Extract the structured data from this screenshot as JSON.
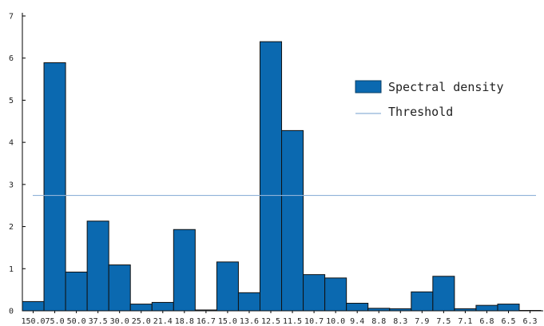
{
  "chart_data": {
    "type": "bar",
    "categories": [
      "150.0",
      "75.0",
      "50.0",
      "37.5",
      "30.0",
      "25.0",
      "21.4",
      "18.8",
      "16.7",
      "15.0",
      "13.6",
      "12.5",
      "11.5",
      "10.7",
      "10.0",
      "9.4",
      "8.8",
      "8.3",
      "7.9",
      "7.5",
      "7.1",
      "6.8",
      "6.5",
      "6.3"
    ],
    "series": [
      {
        "name": "Spectral density",
        "values": [
          0.22,
          5.89,
          0.92,
          2.13,
          1.09,
          0.16,
          0.2,
          1.93,
          0.02,
          1.16,
          0.43,
          6.39,
          4.28,
          0.86,
          0.78,
          0.18,
          0.06,
          0.05,
          0.45,
          0.82,
          0.05,
          0.13,
          0.16,
          0.0
        ],
        "color": "#0b69b0"
      }
    ],
    "threshold": {
      "name": "Threshold",
      "value": 2.74,
      "color": "#8fb2d8"
    },
    "ylim": [
      0,
      7
    ],
    "yticks": [
      "0",
      "1",
      "2",
      "3",
      "4",
      "5",
      "6",
      "7"
    ],
    "grid": false,
    "legend": "upper-right",
    "title": "",
    "xlabel": "",
    "ylabel": ""
  }
}
